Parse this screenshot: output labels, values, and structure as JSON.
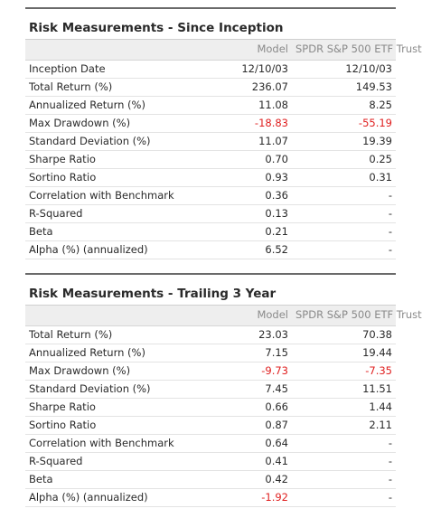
{
  "sections": [
    {
      "title": "Risk Measurements - Since Inception",
      "columns": [
        "",
        "Model",
        "SPDR S&P 500 ETF Trust"
      ],
      "rows": [
        {
          "label": "Inception Date",
          "model": "12/10/03",
          "etf": "12/10/03"
        },
        {
          "label": "Total Return (%)",
          "model": "236.07",
          "etf": "149.53"
        },
        {
          "label": "Annualized Return (%)",
          "model": "11.08",
          "etf": "8.25"
        },
        {
          "label": "Max Drawdown (%)",
          "model": "-18.83",
          "etf": "-55.19"
        },
        {
          "label": "Standard Deviation (%)",
          "model": "11.07",
          "etf": "19.39"
        },
        {
          "label": "Sharpe Ratio",
          "model": "0.70",
          "etf": "0.25"
        },
        {
          "label": "Sortino Ratio",
          "model": "0.93",
          "etf": "0.31"
        },
        {
          "label": "Correlation with Benchmark",
          "model": "0.36",
          "etf": "-"
        },
        {
          "label": "R-Squared",
          "model": "0.13",
          "etf": "-"
        },
        {
          "label": "Beta",
          "model": "0.21",
          "etf": "-"
        },
        {
          "label": "Alpha (%) (annualized)",
          "model": "6.52",
          "etf": "-"
        }
      ]
    },
    {
      "title": "Risk Measurements - Trailing 3 Year",
      "columns": [
        "",
        "Model",
        "SPDR S&P 500 ETF Trust"
      ],
      "rows": [
        {
          "label": "Total Return (%)",
          "model": "23.03",
          "etf": "70.38"
        },
        {
          "label": "Annualized Return (%)",
          "model": "7.15",
          "etf": "19.44"
        },
        {
          "label": "Max Drawdown (%)",
          "model": "-9.73",
          "etf": "-7.35"
        },
        {
          "label": "Standard Deviation (%)",
          "model": "7.45",
          "etf": "11.51"
        },
        {
          "label": "Sharpe Ratio",
          "model": "0.66",
          "etf": "1.44"
        },
        {
          "label": "Sortino Ratio",
          "model": "0.87",
          "etf": "2.11"
        },
        {
          "label": "Correlation with Benchmark",
          "model": "0.64",
          "etf": "-"
        },
        {
          "label": "R-Squared",
          "model": "0.41",
          "etf": "-"
        },
        {
          "label": "Beta",
          "model": "0.42",
          "etf": "-"
        },
        {
          "label": "Alpha (%) (annualized)",
          "model": "-1.92",
          "etf": "-"
        }
      ]
    }
  ],
  "colors": {
    "negative": "#e02020",
    "header_bg": "#eeeeee",
    "title_rule": "#6a6a6a"
  }
}
